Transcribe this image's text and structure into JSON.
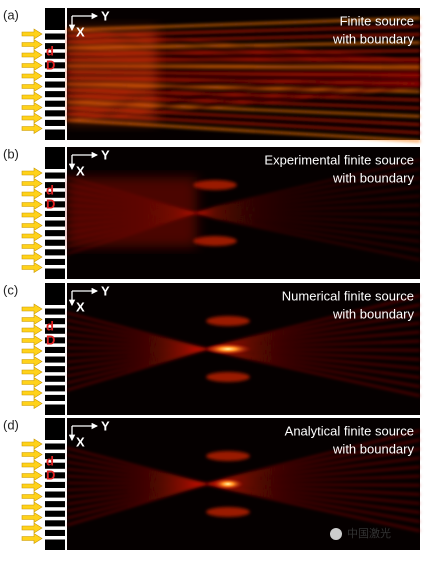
{
  "panels": [
    {
      "label": "(a)",
      "title": [
        "Finite source",
        "with boundary"
      ],
      "axis_x": "X",
      "axis_y": "Y",
      "marks": [
        "d",
        "D"
      ]
    },
    {
      "label": "(b)",
      "title": [
        "Experimental finite source",
        "with boundary"
      ],
      "axis_x": "X",
      "axis_y": "Y",
      "marks": [
        "d",
        "D"
      ]
    },
    {
      "label": "(c)",
      "title": [
        "Numerical finite source",
        "with boundary"
      ],
      "axis_x": "X",
      "axis_y": "Y",
      "marks": [
        "d",
        "D"
      ]
    },
    {
      "label": "(d)",
      "title": [
        "Analytical finite source",
        "with boundary"
      ],
      "axis_x": "X",
      "axis_y": "Y",
      "marks": [
        "d",
        "D"
      ]
    }
  ],
  "watermark": "中国激光"
}
